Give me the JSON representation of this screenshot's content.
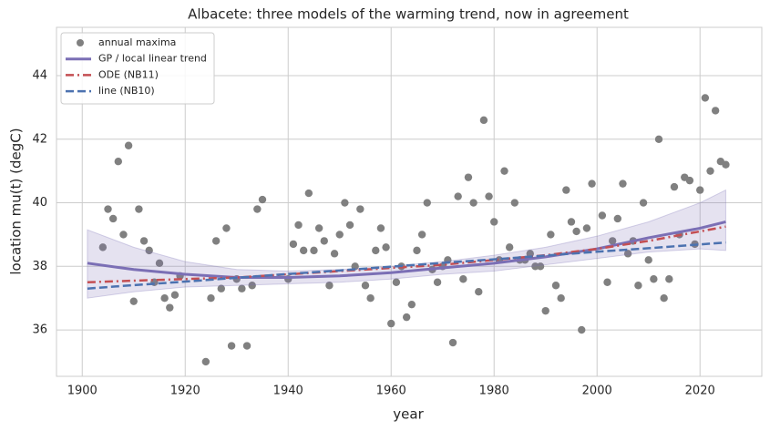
{
  "chart_data": {
    "type": "scatter",
    "title": "Albacete: three models of the warming trend, now in agreement",
    "x_label": "year",
    "y_label": "location mu(t)  (degC)",
    "xlim": [
      1895,
      2032
    ],
    "ylim": [
      34.54,
      45.52
    ],
    "xticks": [
      1900,
      1920,
      1940,
      1960,
      1980,
      2000,
      2020
    ],
    "yticks": [
      36,
      38,
      40,
      42,
      44
    ],
    "grid": true,
    "legend": "upper left",
    "series": [
      {
        "name": "annual maxima",
        "type": "scatter",
        "color": "#808080",
        "x": [
          1904,
          1905,
          1906,
          1907,
          1908,
          1909,
          1910,
          1911,
          1912,
          1913,
          1914,
          1915,
          1916,
          1917,
          1918,
          1919,
          1924,
          1925,
          1926,
          1927,
          1928,
          1929,
          1930,
          1931,
          1932,
          1933,
          1934,
          1935,
          1940,
          1941,
          1942,
          1943,
          1944,
          1945,
          1946,
          1947,
          1948,
          1949,
          1950,
          1951,
          1952,
          1953,
          1954,
          1955,
          1956,
          1957,
          1958,
          1959,
          1960,
          1961,
          1962,
          1963,
          1964,
          1965,
          1966,
          1967,
          1968,
          1969,
          1970,
          1971,
          1972,
          1973,
          1974,
          1975,
          1976,
          1977,
          1978,
          1979,
          1980,
          1981,
          1982,
          1983,
          1984,
          1985,
          1986,
          1987,
          1988,
          1989,
          1990,
          1991,
          1992,
          1993,
          1994,
          1995,
          1996,
          1997,
          1998,
          1999,
          2001,
          2002,
          2003,
          2004,
          2005,
          2006,
          2007,
          2008,
          2009,
          2010,
          2011,
          2012,
          2013,
          2014,
          2015,
          2016,
          2017,
          2018,
          2019,
          2020,
          2021,
          2022,
          2023,
          2024,
          2025
        ],
        "values": [
          38.6,
          39.8,
          39.5,
          41.3,
          39.0,
          41.8,
          36.9,
          39.8,
          38.8,
          38.5,
          37.5,
          38.1,
          37.0,
          36.7,
          37.1,
          37.7,
          35.0,
          37.0,
          38.8,
          37.3,
          39.2,
          35.5,
          37.6,
          37.3,
          35.5,
          37.4,
          39.8,
          40.1,
          37.6,
          38.7,
          39.3,
          38.5,
          40.3,
          38.5,
          39.2,
          38.8,
          37.4,
          38.4,
          39.0,
          40.0,
          39.3,
          38.0,
          39.8,
          37.4,
          37.0,
          38.5,
          39.2,
          38.6,
          36.2,
          37.5,
          38.0,
          36.4,
          36.8,
          38.5,
          39.0,
          40.0,
          37.9,
          37.5,
          38.0,
          38.2,
          35.6,
          40.2,
          37.6,
          40.8,
          40.0,
          37.2,
          42.6,
          40.2,
          39.4,
          38.2,
          41.0,
          38.6,
          40.0,
          38.2,
          38.2,
          38.4,
          38.0,
          38.0,
          36.6,
          39.0,
          37.4,
          37.0,
          40.4,
          39.4,
          39.1,
          36.0,
          39.2,
          40.6,
          39.6,
          37.5,
          38.8,
          39.5,
          40.6,
          38.4,
          38.8,
          37.4,
          40.0,
          38.2,
          37.6,
          42.0,
          37.0,
          37.6,
          40.5,
          39.0,
          40.8,
          40.7,
          38.7,
          40.4,
          43.3,
          41.0,
          42.9,
          41.3,
          41.2
        ]
      },
      {
        "name": "GP / local linear trend",
        "type": "line",
        "style": "solid",
        "color": "#7b6fb5",
        "x": [
          1901,
          1910,
          1920,
          1930,
          1940,
          1950,
          1960,
          1970,
          1980,
          1990,
          2000,
          2010,
          2020,
          2025
        ],
        "values": [
          38.1,
          37.9,
          37.75,
          37.65,
          37.65,
          37.7,
          37.8,
          37.95,
          38.1,
          38.3,
          38.55,
          38.9,
          39.2,
          39.4
        ],
        "lower": [
          37.0,
          37.2,
          37.35,
          37.4,
          37.45,
          37.5,
          37.6,
          37.75,
          37.85,
          38.05,
          38.25,
          38.45,
          38.55,
          38.5
        ],
        "upper": [
          39.15,
          38.6,
          38.15,
          37.9,
          37.85,
          37.9,
          38.0,
          38.15,
          38.35,
          38.6,
          38.95,
          39.4,
          40.0,
          40.4
        ]
      },
      {
        "name": "ODE (NB11)",
        "type": "line",
        "style": "dashdot",
        "color": "#c44e52",
        "x": [
          1901,
          1910,
          1920,
          1930,
          1940,
          1950,
          1960,
          1970,
          1980,
          1990,
          2000,
          2010,
          2020,
          2025
        ],
        "values": [
          37.5,
          37.55,
          37.6,
          37.65,
          37.75,
          37.85,
          37.95,
          38.05,
          38.2,
          38.35,
          38.55,
          38.8,
          39.1,
          39.25
        ]
      },
      {
        "name": "line (NB10)",
        "type": "line",
        "style": "dashed",
        "color": "#4c72b0",
        "x": [
          1901,
          1910,
          1920,
          1930,
          1940,
          1950,
          1960,
          1970,
          1980,
          1990,
          2000,
          2010,
          2020,
          2025
        ],
        "values": [
          37.3,
          37.41,
          37.52,
          37.64,
          37.76,
          37.87,
          37.99,
          38.11,
          38.22,
          38.34,
          38.46,
          38.57,
          38.69,
          38.75
        ]
      }
    ]
  }
}
